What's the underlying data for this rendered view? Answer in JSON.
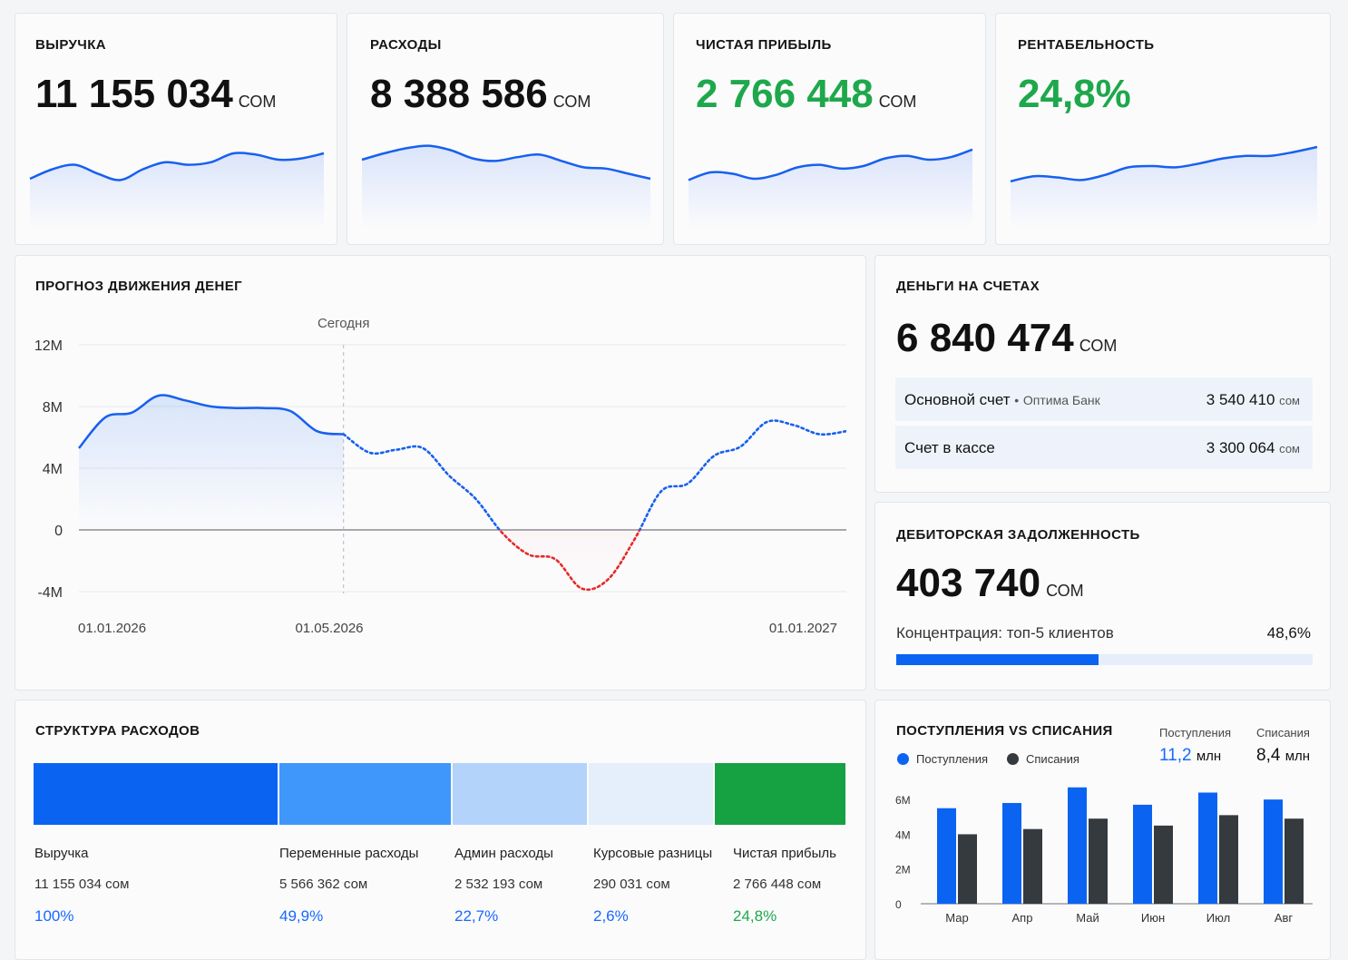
{
  "kpis": [
    {
      "label": "ВЫРУЧКА",
      "value": "11 155 034",
      "unit": "СОМ",
      "color": "#111111",
      "trend": [
        0.4,
        0.55,
        0.62,
        0.48,
        0.38,
        0.55,
        0.66,
        0.62,
        0.66,
        0.8,
        0.78,
        0.7,
        0.72,
        0.8
      ]
    },
    {
      "label": "РАСХОДЫ",
      "value": "8 388 586",
      "unit": "СОМ",
      "color": "#111111",
      "trend": [
        0.7,
        0.8,
        0.88,
        0.92,
        0.85,
        0.72,
        0.68,
        0.74,
        0.78,
        0.68,
        0.58,
        0.56,
        0.48,
        0.4
      ]
    },
    {
      "label": "ЧИСТАЯ ПРИБЫЛЬ",
      "value": "2 766 448",
      "unit": "СОМ",
      "color": "#1ea84b",
      "trend": [
        0.38,
        0.5,
        0.48,
        0.4,
        0.46,
        0.58,
        0.62,
        0.56,
        0.6,
        0.72,
        0.76,
        0.7,
        0.74,
        0.86
      ]
    },
    {
      "label": "РЕНТАБЕЛЬНОСТЬ",
      "value": "24,8%",
      "unit": "",
      "color": "#1ea84b",
      "trend": [
        0.36,
        0.44,
        0.42,
        0.38,
        0.46,
        0.58,
        0.6,
        0.58,
        0.64,
        0.72,
        0.76,
        0.76,
        0.82,
        0.9
      ]
    }
  ],
  "forecast": {
    "title": "ПРОГНОЗ ДВИЖЕНИЯ ДЕНЕГ",
    "today_label": "Сегодня",
    "x_labels": [
      "01.01.2026",
      "01.05.2026",
      "01.01.2027"
    ],
    "y_ticks": [
      "12M",
      "8M",
      "4M",
      "0",
      "-4M"
    ],
    "chart_data": {
      "type": "line",
      "ylim": [
        -4,
        12
      ],
      "y_unit": "M",
      "today_index": 10,
      "values": [
        5.3,
        7.3,
        7.6,
        8.7,
        8.4,
        8.0,
        7.9,
        7.9,
        7.7,
        6.4,
        6.2,
        5.0,
        5.2,
        5.3,
        3.5,
        2.0,
        -0.2,
        -1.6,
        -1.9,
        -3.8,
        -3.2,
        -0.6,
        2.5,
        3.0,
        4.8,
        5.4,
        7.0,
        6.8,
        6.2,
        6.4
      ]
    }
  },
  "accounts": {
    "title": "ДЕНЬГИ НА СЧЕТАХ",
    "total": "6 840 474",
    "unit": "СОМ",
    "rows": [
      {
        "name": "Основной счет",
        "sep": "•",
        "bank": "Оптима Банк",
        "amount": "3 540 410",
        "unit": "сом"
      },
      {
        "name": "Счет в кассе",
        "sep": "",
        "bank": "",
        "amount": "3 300 064",
        "unit": "сом"
      }
    ]
  },
  "receivables": {
    "title": "ДЕБИТОРСКАЯ ЗАДОЛЖЕННОСТЬ",
    "total": "403 740",
    "unit": "СОМ",
    "concentration_label": "Концентрация: топ-5 клиентов",
    "concentration_value": "48,6%",
    "concentration_fraction": 0.486
  },
  "expenses": {
    "title": "СТРУКТУРА РАСХОДОВ",
    "segments": [
      {
        "name": "Выручка",
        "value": "11 155 034",
        "unit": "сом",
        "pct": "100%",
        "color": "#0b63f2",
        "pct_color": "#1769ff"
      },
      {
        "name": "Переменные расходы",
        "value": "5 566 362",
        "unit": "сом",
        "pct": "49,9%",
        "color": "#3f97fb",
        "pct_color": "#1769ff"
      },
      {
        "name": "Админ расходы",
        "value": "2 532 193",
        "unit": "сом",
        "pct": "22,7%",
        "color": "#b3d3fb",
        "pct_color": "#1769ff"
      },
      {
        "name": "Курсовые разницы",
        "value": "290 031",
        "unit": "сом",
        "pct": "2,6%",
        "color": "#e5eefb",
        "pct_color": "#1769ff"
      },
      {
        "name": "Чистая прибыль",
        "value": "2 766 448",
        "unit": "сом",
        "pct": "24,8%",
        "color": "#16a143",
        "pct_color": "#1ea84b"
      }
    ]
  },
  "inout": {
    "title": "ПОСТУПЛЕНИЯ VS СПИСАНИЯ",
    "legend_in": "Поступления",
    "legend_out": "Списания",
    "summary_in_label": "Поступления",
    "summary_in_value": "11,2",
    "summary_out_label": "Списания",
    "summary_out_value": "8,4",
    "summary_unit": "млн",
    "color_in": "#0b63f2",
    "color_out": "#353a3f",
    "chart_data": {
      "type": "bar",
      "categories": [
        "Мар",
        "Апр",
        "Май",
        "Июн",
        "Июл",
        "Авг"
      ],
      "series": [
        {
          "name": "Поступления",
          "values": [
            5.5,
            5.8,
            6.7,
            5.7,
            6.4,
            6.0
          ]
        },
        {
          "name": "Списания",
          "values": [
            4.0,
            4.3,
            4.9,
            4.5,
            5.1,
            4.9
          ]
        }
      ],
      "y_ticks": [
        "6M",
        "4M",
        "2M",
        "0"
      ],
      "ylim": [
        0,
        7
      ]
    }
  }
}
